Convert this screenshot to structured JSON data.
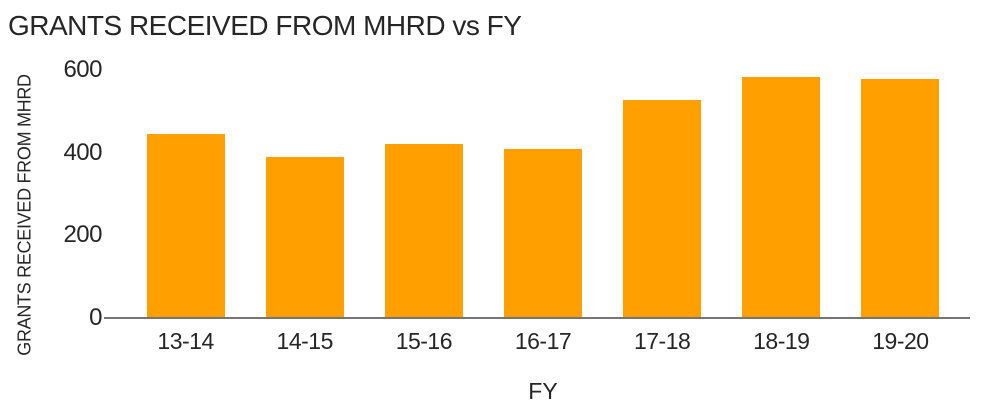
{
  "chart": {
    "title": "GRANTS RECEIVED FROM MHRD vs FY",
    "colors": {
      "bar": "#FF9F00",
      "axis_line": "#757575",
      "text": "#262626",
      "background": "#FFFFFF"
    }
  },
  "chart_data": {
    "type": "bar",
    "title": "GRANTS RECEIVED FROM MHRD vs FY",
    "xlabel": "FY",
    "ylabel": "GRANTS RECEIVED FROM MHRD",
    "categories": [
      "13-14",
      "14-15",
      "15-16",
      "16-17",
      "17-18",
      "18-19",
      "19-20"
    ],
    "values": [
      445,
      390,
      420,
      408,
      527,
      582,
      578
    ],
    "ylim": [
      0,
      600
    ],
    "yticks": [
      0,
      200,
      400,
      600
    ],
    "grid": false,
    "legend": false,
    "bar_color": "#FF9F00"
  }
}
